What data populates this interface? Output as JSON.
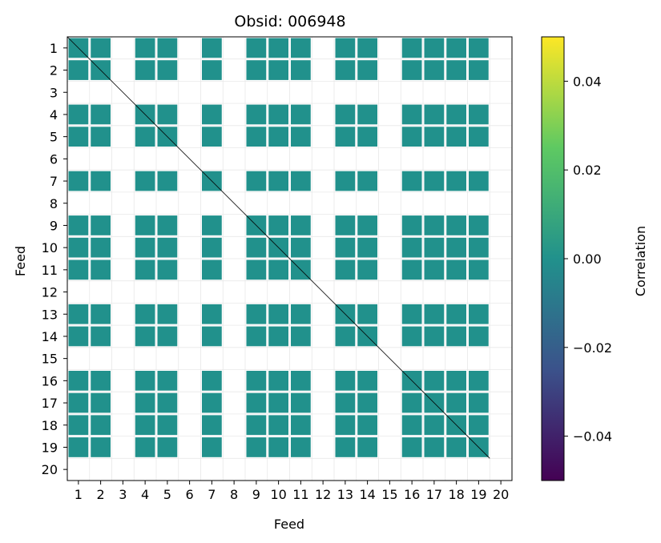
{
  "chart_data": {
    "type": "heatmap",
    "title": "Obsid: 006948",
    "xlabel": "Feed",
    "ylabel": "Feed",
    "x_ticks": [
      "1",
      "2",
      "3",
      "4",
      "5",
      "6",
      "7",
      "8",
      "9",
      "10",
      "11",
      "12",
      "13",
      "14",
      "15",
      "16",
      "17",
      "18",
      "19",
      "20"
    ],
    "y_ticks": [
      "1",
      "2",
      "3",
      "4",
      "5",
      "6",
      "7",
      "8",
      "9",
      "10",
      "11",
      "12",
      "13",
      "14",
      "15",
      "16",
      "17",
      "18",
      "19",
      "20"
    ],
    "n_feeds": 20,
    "empty_feeds": [
      3,
      6,
      8,
      12,
      15,
      20
    ],
    "cell_value": 0.0,
    "cell_color": "#21918c",
    "diagonal_color": "#000000",
    "colorbar": {
      "label": "Correlation",
      "vmin": -0.05,
      "vmax": 0.05,
      "tick_values": [
        -0.04,
        -0.02,
        0.0,
        0.02,
        0.04
      ],
      "tick_labels": [
        "−0.04",
        "−0.02",
        "0.00",
        "0.02",
        "0.04"
      ],
      "colormap": "viridis",
      "colors": [
        "#440154",
        "#3b528b",
        "#21918c",
        "#5ec962",
        "#fde725"
      ]
    },
    "grid": true
  }
}
